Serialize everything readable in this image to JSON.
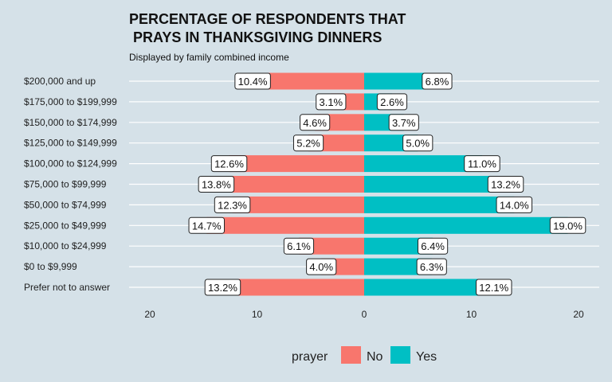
{
  "chart_data": {
    "type": "bar",
    "orientation": "horizontal",
    "title_line1": "PERCENTAGE OF RESPONDENTS THAT",
    "title_line2": " PRAYS IN THANKSGIVING DINNERS",
    "subtitle": "Displayed by family combined income",
    "xlabel": "",
    "ylabel": "",
    "xlim": [
      -22,
      22
    ],
    "x_ticks": [
      -20,
      -10,
      0,
      10,
      20
    ],
    "x_tick_labels": [
      "20",
      "10",
      "0",
      "10",
      "20"
    ],
    "grid": true,
    "legend_placement": "bottom",
    "legend_title": "prayer",
    "categories": [
      "$200,000 and up",
      "$175,000 to $199,999",
      "$150,000 to $174,999",
      "$125,000 to $149,999",
      "$100,000 to $124,999",
      "$75,000 to $99,999",
      "$50,000 to $74,999",
      "$25,000 to $49,999",
      "$10,000 to $24,999",
      "$0 to $9,999",
      "Prefer not to answer"
    ],
    "series": [
      {
        "name": "No",
        "color": "#f8766d",
        "direction": "left",
        "values": [
          10.4,
          3.1,
          4.6,
          5.2,
          12.6,
          13.8,
          12.3,
          14.7,
          6.1,
          4.0,
          13.2
        ],
        "labels": [
          "10.4%",
          "3.1%",
          "4.6%",
          "5.2%",
          "12.6%",
          "13.8%",
          "12.3%",
          "14.7%",
          "6.1%",
          "4.0%",
          "13.2%"
        ]
      },
      {
        "name": "Yes",
        "color": "#00bfc4",
        "direction": "right",
        "values": [
          6.8,
          2.6,
          3.7,
          5.0,
          11.0,
          13.2,
          14.0,
          19.0,
          6.4,
          6.3,
          12.1
        ],
        "labels": [
          "6.8%",
          "2.6%",
          "3.7%",
          "5.0%",
          "11.0%",
          "13.2%",
          "14.0%",
          "19.0%",
          "6.4%",
          "6.3%",
          "12.1%"
        ]
      }
    ]
  },
  "colors": {
    "background": "#d5e1e8",
    "grid": "#ffffff"
  }
}
